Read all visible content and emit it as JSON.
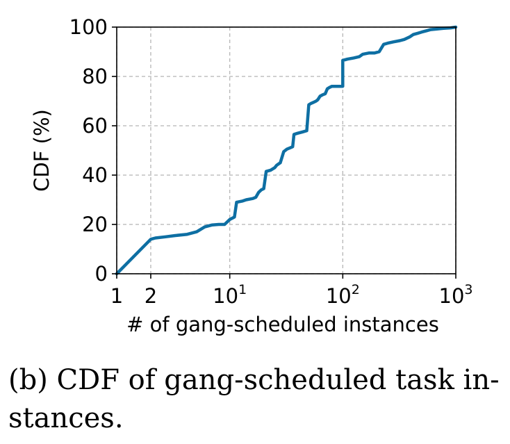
{
  "chart_data": {
    "type": "line",
    "xlabel": "# of gang-scheduled instances",
    "ylabel": "CDF (%)",
    "x_scale": "log",
    "xlim": [
      1,
      1000
    ],
    "ylim": [
      0,
      100
    ],
    "grid": true,
    "x_ticks": [
      {
        "value": 1,
        "base": "1",
        "exp": ""
      },
      {
        "value": 2,
        "base": "2",
        "exp": ""
      },
      {
        "value": 10,
        "base": "10",
        "exp": "1"
      },
      {
        "value": 100,
        "base": "10",
        "exp": "2"
      },
      {
        "value": 1000,
        "base": "10",
        "exp": "3"
      }
    ],
    "y_ticks": [
      "0",
      "20",
      "40",
      "60",
      "80",
      "100"
    ],
    "series": [
      {
        "color": "#0e6fa3",
        "x": [
          1,
          2,
          2.2,
          2.7,
          3.3,
          4.2,
          5.1,
          6,
          7,
          8,
          9,
          10,
          11,
          11.5,
          13,
          14,
          16,
          17,
          18,
          19,
          20,
          21,
          23,
          24,
          25,
          26,
          27,
          28,
          30,
          32,
          34,
          36,
          37,
          40,
          44,
          48,
          50,
          52,
          55,
          58,
          60,
          63,
          66,
          70,
          73,
          76,
          80,
          88,
          95,
          100,
          100,
          110,
          125,
          140,
          150,
          170,
          190,
          210,
          230,
          250,
          280,
          320,
          350,
          390,
          420,
          460,
          500,
          550,
          600,
          680,
          780,
          900,
          1000
        ],
        "y": [
          0,
          14,
          14.5,
          15,
          15.5,
          16,
          17,
          19,
          19.8,
          20,
          20,
          22,
          23,
          29,
          29.5,
          30,
          30.5,
          31,
          33,
          34,
          34.5,
          41.5,
          42,
          42.5,
          43,
          44,
          44.5,
          45,
          49.5,
          50.5,
          51,
          51.5,
          56.5,
          57,
          57.5,
          58,
          68.5,
          69,
          69.5,
          70,
          70.5,
          72,
          72.5,
          73,
          75,
          75.5,
          76,
          76,
          76,
          76,
          86.5,
          87,
          87.5,
          88,
          89,
          89.5,
          89.5,
          90,
          93,
          93.5,
          94,
          94.5,
          95,
          96,
          97,
          97.5,
          98,
          98.5,
          99,
          99.2,
          99.5,
          99.7,
          100
        ]
      }
    ]
  },
  "caption": "(b) CDF of gang-scheduled task in- stances."
}
